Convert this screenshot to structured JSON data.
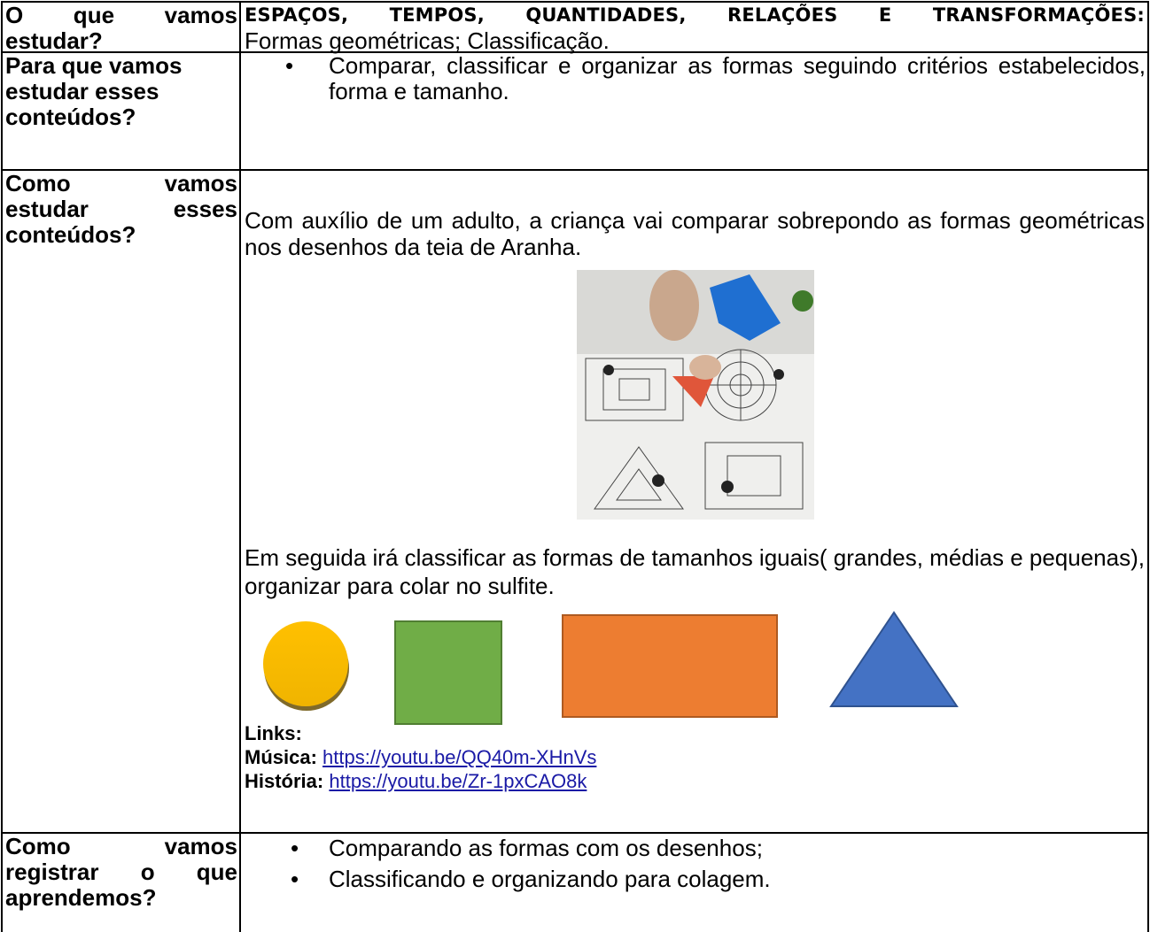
{
  "table": {
    "rows": [
      {
        "label": "O que vamos estudar?",
        "heading": "ESPAÇOS, TEMPOS, QUANTIDADES, RELAÇÕES E TRANSFORMAÇÕES:",
        "text": "Formas geométricas; Classificação."
      },
      {
        "label": "Para que vamos estudar esses conteúdos?",
        "bullets": [
          "Comparar, classificar e organizar as formas seguindo critérios estabelecidos, forma e tamanho."
        ]
      },
      {
        "label": "Como vamos estudar esses conteúdos?",
        "paragraphs": [
          "Com auxílio de um adulto, a criança vai comparar sobrepondo as formas geométricas  nos desenhos da teia de Aranha.",
          "Em seguida irá classificar as formas de tamanhos iguais( grandes, médias e pequenas), organizar para colar no sulfite."
        ],
        "links_title": "Links:",
        "links": [
          {
            "label": "Música:",
            "url": "https://youtu.be/QQ40m-XHnVs"
          },
          {
            "label": "História:",
            "url": "https://youtu.be/Zr-1pxCAO8k"
          }
        ]
      },
      {
        "label": "Como vamos registrar o que aprendemos?",
        "bullets": [
          "Comparando as formas com os desenhos;",
          "Classificando e organizando para colagem."
        ]
      }
    ]
  }
}
